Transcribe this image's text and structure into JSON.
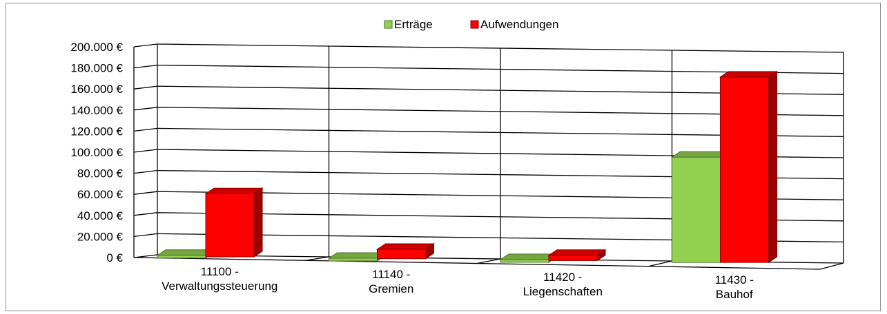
{
  "chart_data": {
    "type": "bar",
    "categories": [
      [
        "11100 -",
        "Verwaltungssteuerung"
      ],
      [
        "11140 -",
        "Gremien"
      ],
      [
        "11420 -",
        "Liegenschaften"
      ],
      [
        "11430 -",
        "Bauhof"
      ]
    ],
    "series": [
      {
        "name": "Erträge",
        "color": "#92d050",
        "values": [
          1500,
          500,
          1000,
          100000
        ]
      },
      {
        "name": "Aufwendungen",
        "color": "#ff0000",
        "values": [
          60000,
          9000,
          5000,
          176000
        ]
      }
    ],
    "yticks": [
      "0 €",
      "20.000 €",
      "40.000 €",
      "60.000 €",
      "80.000 €",
      "100.000 €",
      "120.000 €",
      "140.000 €",
      "160.000 €",
      "180.000 €",
      "200.000 €"
    ],
    "ylim": [
      0,
      200000
    ],
    "grid": true,
    "legend_position": "top-center",
    "style": "3d-clustered-column"
  }
}
